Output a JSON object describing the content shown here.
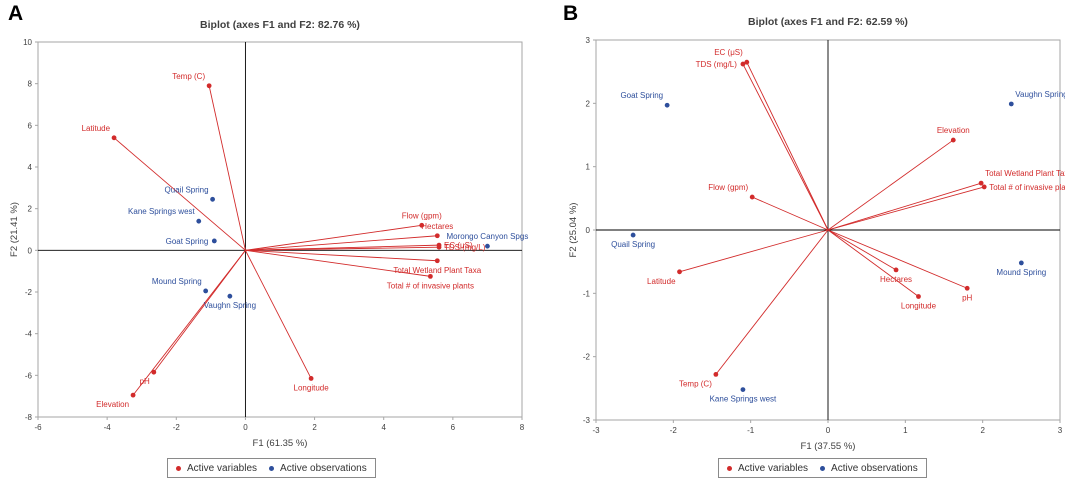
{
  "figure": {
    "legend": {
      "active_variables": "Active variables",
      "active_observations": "Active observations",
      "variables_color": "#d22b2b",
      "observations_color": "#2e4f9c"
    }
  },
  "chart_data": [
    {
      "panel_letter": "A",
      "type": "scatter",
      "subtype": "biplot",
      "title": "Biplot (axes F1 and F2: 82.76 %)",
      "xlabel": "F1 (61.35 %)",
      "ylabel": "F2 (21.41 %)",
      "xlim": [
        -6,
        8
      ],
      "ylim": [
        -8,
        10
      ],
      "xticks": [
        -6,
        -4,
        -2,
        0,
        2,
        4,
        6,
        8
      ],
      "yticks": [
        -8,
        -6,
        -4,
        -2,
        0,
        2,
        4,
        6,
        8,
        10
      ],
      "variables": [
        {
          "name": "Temp (C)",
          "x": -1.05,
          "y": 7.9,
          "label_pos": "above-left"
        },
        {
          "name": "Latitude",
          "x": -3.8,
          "y": 5.4,
          "label_pos": "above-left"
        },
        {
          "name": "Flow (gpm)",
          "x": 5.1,
          "y": 1.2,
          "label_pos": "above"
        },
        {
          "name": "Hectares",
          "x": 5.55,
          "y": 0.7,
          "label_pos": "above"
        },
        {
          "name": "EC (μS)",
          "x": 5.6,
          "y": 0.25,
          "label_pos": "right"
        },
        {
          "name": "TDS (mg/L)",
          "x": 5.6,
          "y": 0.15,
          "label_pos": "right"
        },
        {
          "name": "Total Wetland Plant Taxa",
          "x": 5.55,
          "y": -0.5,
          "label_pos": "below"
        },
        {
          "name": "Total # of invasive plants",
          "x": 5.35,
          "y": -1.25,
          "label_pos": "below"
        },
        {
          "name": "Longitude",
          "x": 1.9,
          "y": -6.15,
          "label_pos": "below"
        },
        {
          "name": "pH",
          "x": -2.65,
          "y": -5.85,
          "label_pos": "below-left"
        },
        {
          "name": "Elevation",
          "x": -3.25,
          "y": -6.95,
          "label_pos": "below-left"
        }
      ],
      "observations": [
        {
          "name": "Quail Spring",
          "x": -0.95,
          "y": 2.45,
          "label_pos": "above-left"
        },
        {
          "name": "Kane Springs west",
          "x": -1.35,
          "y": 1.4,
          "label_pos": "above-left"
        },
        {
          "name": "Goat Spring",
          "x": -0.9,
          "y": 0.45,
          "label_pos": "left"
        },
        {
          "name": "Morongo Canyon Spgs",
          "x": 7.0,
          "y": 0.2,
          "label_pos": "above"
        },
        {
          "name": "Mound Spring",
          "x": -1.15,
          "y": -1.95,
          "label_pos": "above-left"
        },
        {
          "name": "Vaughn Spring",
          "x": -0.45,
          "y": -2.2,
          "label_pos": "below"
        }
      ]
    },
    {
      "panel_letter": "B",
      "type": "scatter",
      "subtype": "biplot",
      "title": "Biplot (axes F1 and F2: 62.59 %)",
      "xlabel": "F1 (37.55 %)",
      "ylabel": "F2 (25.04 %)",
      "xlim": [
        -3,
        3
      ],
      "ylim": [
        -3,
        3
      ],
      "xticks": [
        -3,
        -2,
        -1,
        0,
        1,
        2,
        3
      ],
      "yticks": [
        -3,
        -2,
        -1,
        0,
        1,
        2,
        3
      ],
      "variables": [
        {
          "name": "EC (μS)",
          "x": -1.05,
          "y": 2.65,
          "label_pos": "above-left"
        },
        {
          "name": "TDS (mg/L)",
          "x": -1.1,
          "y": 2.62,
          "label_pos": "left"
        },
        {
          "name": "Elevation",
          "x": 1.62,
          "y": 1.42,
          "label_pos": "above"
        },
        {
          "name": "Total Wetland Plant Taxa",
          "x": 1.98,
          "y": 0.74,
          "label_pos": "above-right"
        },
        {
          "name": "Total # of invasive plants",
          "x": 2.02,
          "y": 0.68,
          "label_pos": "right"
        },
        {
          "name": "Flow (gpm)",
          "x": -0.98,
          "y": 0.52,
          "label_pos": "above-left"
        },
        {
          "name": "Latitude",
          "x": -1.92,
          "y": -0.66,
          "label_pos": "below-left"
        },
        {
          "name": "Hectares",
          "x": 0.88,
          "y": -0.63,
          "label_pos": "below"
        },
        {
          "name": "Longitude",
          "x": 1.17,
          "y": -1.05,
          "label_pos": "below"
        },
        {
          "name": "pH",
          "x": 1.8,
          "y": -0.92,
          "label_pos": "below"
        },
        {
          "name": "Temp (C)",
          "x": -1.45,
          "y": -2.28,
          "label_pos": "below-left"
        }
      ],
      "observations": [
        {
          "name": "Goat Spring",
          "x": -2.08,
          "y": 1.97,
          "label_pos": "above-left"
        },
        {
          "name": "Vaughn Spring",
          "x": 2.37,
          "y": 1.99,
          "label_pos": "above-right"
        },
        {
          "name": "Quail Spring",
          "x": -2.52,
          "y": -0.08,
          "label_pos": "below"
        },
        {
          "name": "Mound Spring",
          "x": 2.5,
          "y": -0.52,
          "label_pos": "below"
        },
        {
          "name": "Kane Springs west",
          "x": -1.1,
          "y": -2.52,
          "label_pos": "below"
        }
      ]
    }
  ]
}
